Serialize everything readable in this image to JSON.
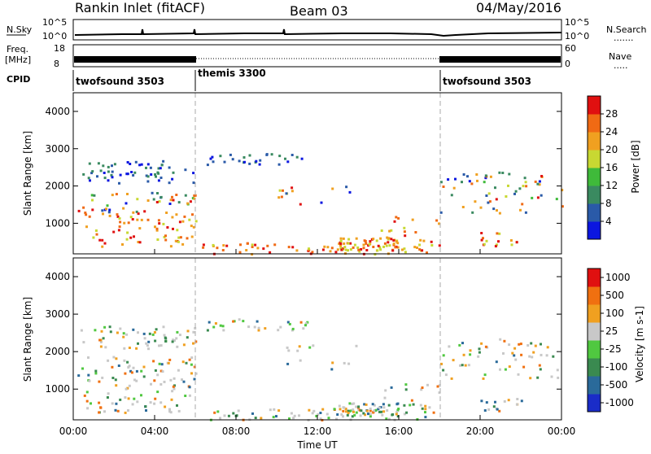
{
  "header": {
    "site": "Rankin Inlet (fitACF)",
    "beam": "Beam 03",
    "date": "04/May/2016"
  },
  "param_panels": {
    "nsky_label": "N.Sky",
    "nsky_ticks": [
      "10^5",
      "10^0"
    ],
    "nsearch_label": "N.Search",
    "nsearch_ticks": [
      "10^5",
      "10^0"
    ],
    "freq_label_1": "Freq.",
    "freq_label_2": "[MHz]",
    "freq_ticks": [
      "18",
      "8"
    ],
    "nave_label": "Nave",
    "nave_ticks": [
      "60",
      "0"
    ],
    "cpid_label": "CPID",
    "cpid_segments": [
      {
        "name": "twofsound 3503",
        "start_hour": 0,
        "end_hour": 6
      },
      {
        "name": "themis 3300",
        "start_hour": 6,
        "end_hour": 18
      },
      {
        "name": "twofsound 3503",
        "start_hour": 18,
        "end_hour": 24
      }
    ]
  },
  "chart_data": [
    {
      "type": "heatmap",
      "quantity": "power",
      "ylabel": "Slant Range [km]",
      "yticks": [
        1000,
        2000,
        3000,
        4000
      ],
      "ylim": [
        180,
        4500
      ],
      "xticks": [
        "00:00",
        "04:00",
        "08:00",
        "12:00",
        "16:00",
        "20:00",
        "00:00"
      ],
      "xlim_hours": [
        0,
        24
      ],
      "colorbar": {
        "label": "Power [dB]",
        "ticks": [
          "4",
          "8",
          "12",
          "16",
          "20",
          "24",
          "28"
        ],
        "colors": [
          "#0b16e0",
          "#2a5aa8",
          "#3a8a60",
          "#3fba3a",
          "#c8d832",
          "#f0a020",
          "#f06a14",
          "#e01010"
        ]
      }
    },
    {
      "type": "heatmap",
      "quantity": "velocity",
      "ylabel": "Slant Range [km]",
      "yticks": [
        1000,
        2000,
        3000,
        4000
      ],
      "ylim": [
        180,
        4500
      ],
      "xticks": [
        "00:00",
        "04:00",
        "08:00",
        "12:00",
        "16:00",
        "20:00",
        "00:00"
      ],
      "xlim_hours": [
        0,
        24
      ],
      "xlabel": "Time UT",
      "colorbar": {
        "label": "Velocity [m s-1]",
        "ticks": [
          "1000",
          "500",
          "100",
          "25",
          "-25",
          "-100",
          "-500",
          "-1000"
        ],
        "colors": [
          "#1a2cc8",
          "#2a6a9a",
          "#3a8a50",
          "#50c840",
          "#c8c8c8",
          "#f0a020",
          "#f07010",
          "#e01010"
        ]
      }
    }
  ]
}
